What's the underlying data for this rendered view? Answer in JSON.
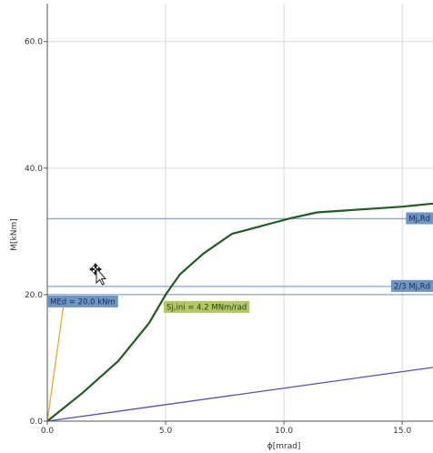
{
  "chart_data": {
    "type": "line",
    "xlabel": "ϕ[mrad]",
    "ylabel": "M[kNm]",
    "xlim": [
      0,
      16.3
    ],
    "ylim": [
      0,
      66
    ],
    "x_ticks": [
      "0.0",
      "5.0",
      "10.0",
      "15.0"
    ],
    "y_ticks": [
      "0.0",
      "20.0",
      "40.0",
      "60.0"
    ],
    "grid": true,
    "series": [
      {
        "color": "#1f5c1f",
        "x": [
          0,
          1.5,
          3.0,
          4.3,
          5.0,
          5.6,
          6.6,
          7.8,
          8.5,
          9.4,
          10.3,
          11.4,
          13.0,
          15.0,
          16.3
        ],
        "y": [
          0,
          4.5,
          9.5,
          15.5,
          20.0,
          23.2,
          26.5,
          29.6,
          30.3,
          31.2,
          32.1,
          33.0,
          33.4,
          33.9,
          34.4
        ]
      },
      {
        "color": "#e8a92a",
        "x": [
          0,
          0.75
        ],
        "y": [
          0,
          20.0
        ]
      },
      {
        "color": "#5a4bbf",
        "x": [
          0,
          16.3
        ],
        "y": [
          0,
          8.5
        ]
      }
    ],
    "reference_lines": [
      {
        "y": 32.0,
        "label": "Mj,Rd",
        "color": "#8ba7c4"
      },
      {
        "y": 21.3,
        "label": "2/3 Mj,Rd",
        "color": "#8ba7c4"
      },
      {
        "y": 20.0,
        "label": "MEd = 20.0 kNm",
        "color": "#8ba7c4"
      }
    ],
    "stiffness_label": {
      "x": 5.0,
      "y": 20.0,
      "text": "Sj,ini = 4.2 MNm/rad",
      "color": "#b3c765"
    }
  },
  "colors": {
    "grid": "#d9d9d9",
    "axis": "#555555",
    "ref_label_bg": "#6f95c4",
    "ref_label_text": "#1b2b55",
    "stiff_label_bg": "#b3c765",
    "stiff_label_text": "#2b3b10"
  },
  "cursor_icon": "move-cursor-icon"
}
